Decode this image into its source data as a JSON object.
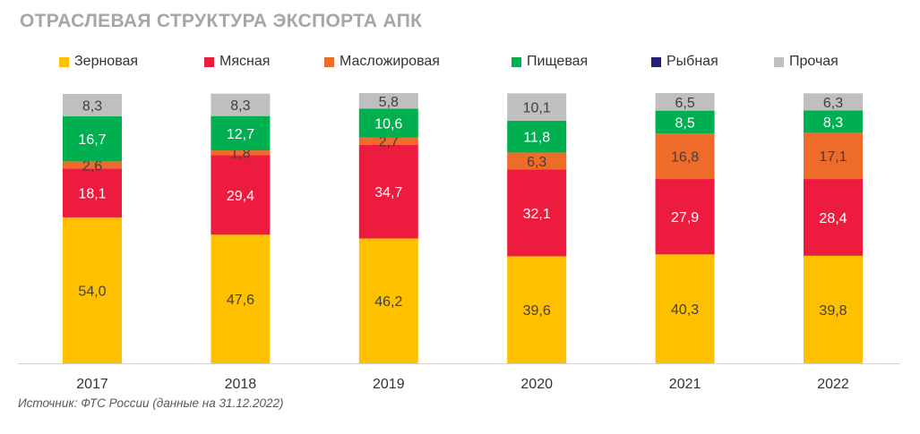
{
  "title": "ОТРАСЛЕВАЯ СТРУКТУРА ЭКСПОРТА АПК",
  "source": "Источник: ФТС России (данные на 31.12.2022)",
  "legend": [
    {
      "label": "Зерновая",
      "color": "#ffc000"
    },
    {
      "label": "Мясная",
      "color": "#ed1c3f"
    },
    {
      "label": "Масложировая",
      "color": "#ee6b2a"
    },
    {
      "label": "Пищевая",
      "color": "#00b050"
    },
    {
      "label": "Рыбная",
      "color": "#1f2277"
    },
    {
      "label": "Прочая",
      "color": "#bfbfbf"
    }
  ],
  "chart_data": {
    "type": "bar",
    "stacked": true,
    "title": "ОТРАСЛЕВАЯ СТРУКТУРА ЭКСПОРТА АПК",
    "categories": [
      "2017",
      "2018",
      "2019",
      "2020",
      "2021",
      "2022"
    ],
    "series": [
      {
        "name": "Зерновая",
        "color": "#ffc000",
        "labels": [
          "54,0",
          "47,6",
          "46,2",
          "39,6",
          "40,3",
          "39,8"
        ],
        "values": [
          54.0,
          47.6,
          46.2,
          39.6,
          40.3,
          39.8
        ]
      },
      {
        "name": "Мясная",
        "color": "#ed1c3f",
        "labels": [
          "18,1",
          "29,4",
          "34,7",
          "32,1",
          "27,9",
          "28,4"
        ],
        "values": [
          18.1,
          29.4,
          34.7,
          32.1,
          27.9,
          28.4
        ]
      },
      {
        "name": "Масложировая",
        "color": "#ee6b2a",
        "labels": [
          "2,6",
          "1,8",
          "2,7",
          "6,3",
          "16,8",
          "17,1"
        ],
        "values": [
          2.6,
          1.8,
          2.7,
          6.3,
          16.8,
          17.1
        ]
      },
      {
        "name": "Пищевая",
        "color": "#00b050",
        "labels": [
          "16,7",
          "12,7",
          "10,6",
          "11,8",
          "8,5",
          "8,3"
        ],
        "values": [
          16.7,
          12.7,
          10.6,
          11.8,
          8.5,
          8.3
        ]
      },
      {
        "name": "Рыбная",
        "color": "#1f2277",
        "labels": [
          "",
          "",
          "",
          "",
          "",
          ""
        ],
        "values": [
          0,
          0,
          0,
          0,
          0,
          0
        ]
      },
      {
        "name": "Прочая",
        "color": "#bfbfbf",
        "labels": [
          "8,3",
          "8,3",
          "5,8",
          "10,1",
          "6,5",
          "6,3"
        ],
        "values": [
          8.3,
          8.3,
          5.8,
          10.1,
          6.5,
          6.3
        ]
      }
    ],
    "ylim": [
      0,
      100
    ],
    "grid": false,
    "legend_position": "top"
  }
}
